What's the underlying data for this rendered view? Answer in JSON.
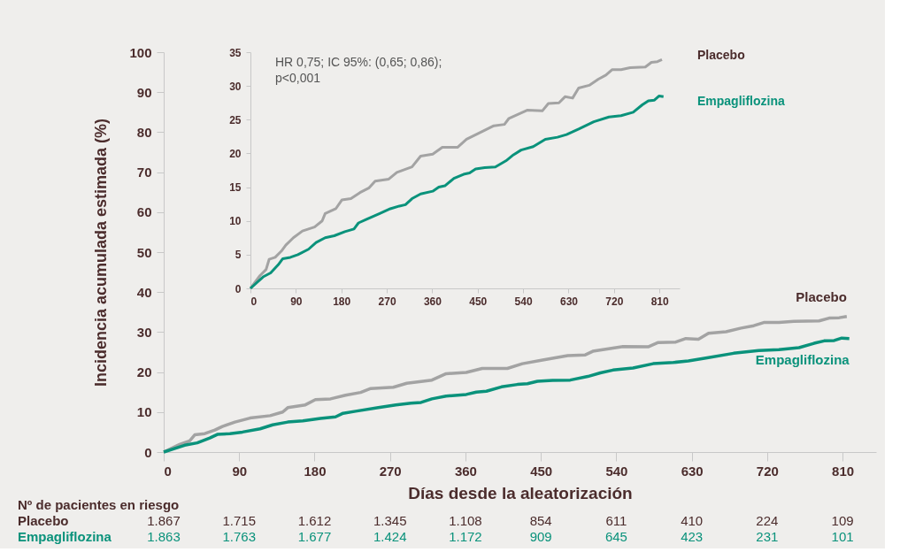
{
  "chart_data": [
    {
      "type": "line",
      "xlabel": "Días desde la aleatorización",
      "ylabel": "Incidencia acumulada estimada (%)",
      "xlim": [
        0,
        850
      ],
      "ylim": [
        0,
        100
      ],
      "xticks": [
        0,
        90,
        180,
        270,
        360,
        450,
        540,
        630,
        720,
        810
      ],
      "yticks": [
        0,
        10,
        20,
        30,
        40,
        50,
        60,
        70,
        80,
        90,
        100
      ],
      "grid": false,
      "legend": false,
      "line_style": "solid",
      "marker": "none",
      "series": [
        {
          "name": "Placebo",
          "color": "#a3a3a3",
          "x": [
            0,
            19,
            31,
            37,
            49,
            61,
            70,
            85,
            103,
            127,
            142,
            148,
            169,
            181,
            199,
            217,
            235,
            247,
            274,
            290,
            320,
            337,
            361,
            380,
            410,
            428,
            452,
            482,
            503,
            512,
            548,
            578,
            590,
            611,
            623,
            638,
            650,
            671,
            689,
            704,
            716,
            734,
            752,
            782,
            794,
            806,
            815
          ],
          "values": [
            0,
            1.9,
            2.8,
            4.3,
            4.6,
            5.5,
            6.4,
            7.5,
            8.5,
            9.1,
            10.0,
            11.1,
            11.8,
            13.1,
            13.3,
            14.2,
            14.9,
            15.9,
            16.2,
            17.2,
            18.0,
            19.6,
            19.9,
            20.9,
            20.9,
            22.1,
            23.0,
            24.1,
            24.3,
            25.2,
            26.4,
            26.3,
            27.4,
            27.5,
            28.4,
            28.2,
            29.7,
            30.1,
            31.0,
            31.6,
            32.4,
            32.4,
            32.7,
            32.8,
            33.5,
            33.6,
            33.9
          ]
        },
        {
          "name": "Empagliflozina",
          "color": "#0a927b",
          "x": [
            0,
            25,
            40,
            55,
            64,
            79,
            94,
            115,
            130,
            148,
            166,
            187,
            205,
            214,
            229,
            256,
            277,
            295,
            307,
            320,
            337,
            361,
            373,
            385,
            403,
            422,
            434,
            446,
            464,
            485,
            506,
            521,
            536,
            560,
            584,
            608,
            626,
            650,
            680,
            710,
            734,
            758,
            776,
            788,
            800,
            809,
            818
          ],
          "values": [
            0,
            1.7,
            2.3,
            3.5,
            4.4,
            4.6,
            5.0,
            5.8,
            6.8,
            7.5,
            7.8,
            8.4,
            8.8,
            9.7,
            10.2,
            11.1,
            11.8,
            12.2,
            12.4,
            13.3,
            14.0,
            14.4,
            15.0,
            15.2,
            16.3,
            16.9,
            17.1,
            17.7,
            17.9,
            18.0,
            18.9,
            19.8,
            20.5,
            21.0,
            22.1,
            22.4,
            22.8,
            23.6,
            24.7,
            25.4,
            25.6,
            26.1,
            27.2,
            27.8,
            27.9,
            28.5,
            28.4
          ]
        }
      ],
      "annotations": [
        "Nº de pacientes en riesgo",
        "1.867",
        "1.715",
        "1.612",
        "1.345",
        "1.108",
        "854",
        "611",
        "410",
        "224",
        "109",
        "1.863",
        "1.763",
        "1.677",
        "1.424",
        "1.172",
        "909",
        "645",
        "423",
        "231",
        "101"
      ]
    },
    {
      "type": "line",
      "xlim": [
        0,
        850
      ],
      "ylim": [
        0,
        35
      ],
      "xticks": [
        0,
        90,
        180,
        270,
        360,
        450,
        540,
        630,
        720,
        810
      ],
      "yticks": [
        0,
        5,
        10,
        15,
        20,
        25,
        30,
        35
      ],
      "grid": false,
      "legend": false,
      "line_style": "solid",
      "marker": "none",
      "series": [
        {
          "name": "Placebo",
          "color": "#a3a3a3",
          "x": [
            0,
            19,
            31,
            37,
            49,
            61,
            70,
            85,
            103,
            127,
            142,
            148,
            169,
            181,
            199,
            217,
            235,
            247,
            274,
            290,
            320,
            337,
            361,
            380,
            410,
            428,
            452,
            482,
            503,
            512,
            548,
            578,
            590,
            611,
            623,
            638,
            650,
            671,
            689,
            704,
            716,
            734,
            752,
            782,
            794,
            806,
            815
          ],
          "values": [
            0,
            1.9,
            2.8,
            4.3,
            4.6,
            5.5,
            6.4,
            7.5,
            8.5,
            9.1,
            10.0,
            11.1,
            11.8,
            13.1,
            13.3,
            14.2,
            14.9,
            15.9,
            16.2,
            17.2,
            18.0,
            19.6,
            19.9,
            20.9,
            20.9,
            22.1,
            23.0,
            24.1,
            24.3,
            25.2,
            26.4,
            26.3,
            27.4,
            27.5,
            28.4,
            28.2,
            29.7,
            30.1,
            31.0,
            31.6,
            32.4,
            32.4,
            32.7,
            32.8,
            33.5,
            33.6,
            33.9
          ]
        },
        {
          "name": "Empagliflozina",
          "color": "#0a927b",
          "x": [
            0,
            25,
            40,
            55,
            64,
            79,
            94,
            115,
            130,
            148,
            166,
            187,
            205,
            214,
            229,
            256,
            277,
            295,
            307,
            320,
            337,
            361,
            373,
            385,
            403,
            422,
            434,
            446,
            464,
            485,
            506,
            521,
            536,
            560,
            584,
            608,
            626,
            650,
            680,
            710,
            734,
            758,
            776,
            788,
            800,
            809,
            818
          ],
          "values": [
            0,
            1.7,
            2.3,
            3.5,
            4.4,
            4.6,
            5.0,
            5.8,
            6.8,
            7.5,
            7.8,
            8.4,
            8.8,
            9.7,
            10.2,
            11.1,
            11.8,
            12.2,
            12.4,
            13.3,
            14.0,
            14.4,
            15.0,
            15.2,
            16.3,
            16.9,
            17.1,
            17.7,
            17.9,
            18.0,
            18.9,
            19.8,
            20.5,
            21.0,
            22.1,
            22.4,
            22.8,
            23.6,
            24.7,
            25.4,
            25.6,
            26.1,
            27.2,
            27.8,
            27.9,
            28.5,
            28.4
          ]
        }
      ],
      "annotations": [
        "HR 0,75; IC 95%: (0,65; 0,86);",
        "p<0,001"
      ]
    }
  ]
}
